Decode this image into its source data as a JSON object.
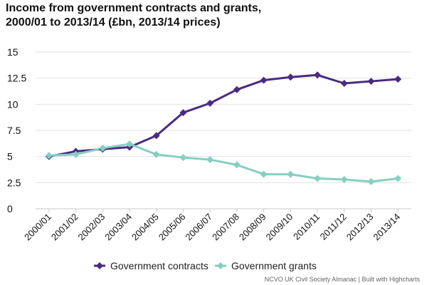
{
  "chart_data": {
    "type": "line",
    "title": "Income from government contracts and grants, 2000/01 to 2013/14 (£bn, 2013/14 prices)",
    "categories": [
      "2000/01",
      "2001/02",
      "2002/03",
      "2003/04",
      "2004/05",
      "2005/06",
      "2006/07",
      "2007/08",
      "2008/09",
      "2009/10",
      "2010/11",
      "2011/12",
      "2012/13",
      "2013/14"
    ],
    "y_ticks": [
      "0",
      "2.5",
      "5",
      "7.5",
      "10",
      "12.5",
      "15"
    ],
    "ylim": [
      0,
      15
    ],
    "grid": true,
    "legend_position": "bottom-center",
    "series": [
      {
        "name": "Government contracts",
        "color": "#4b2a82",
        "marker": "diamond",
        "values": [
          5.0,
          5.5,
          5.7,
          5.9,
          7.0,
          9.2,
          10.1,
          11.4,
          12.3,
          12.6,
          12.8,
          12.0,
          12.2,
          12.4
        ]
      },
      {
        "name": "Government grants",
        "color": "#85cfc1",
        "marker": "diamond",
        "values": [
          5.1,
          5.2,
          5.8,
          6.2,
          5.2,
          4.9,
          4.7,
          4.2,
          3.3,
          3.3,
          2.9,
          2.8,
          2.6,
          2.9
        ]
      }
    ]
  },
  "credit": "NCVO UK Civil Society Almanac | Built with Highcharts"
}
